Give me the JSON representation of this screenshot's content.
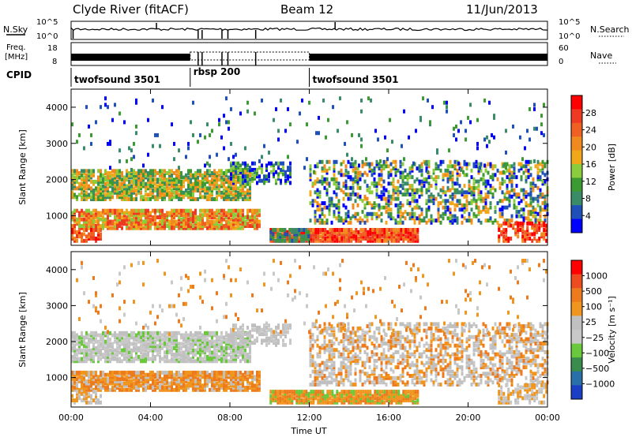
{
  "header": {
    "title": "Clyde River (fitACF)",
    "beam": "Beam 12",
    "date": "11/Jun/2013"
  },
  "top_strip": {
    "nsky_label": "N.Sky",
    "nsky_ticks": [
      "10^5",
      "10^0"
    ],
    "nsearch_label": "N.Search",
    "nsearch_ticks": [
      "10^5",
      "10^0"
    ],
    "freq_label_1": "Freq.",
    "freq_label_2": "[MHz]",
    "freq_ticks": [
      "18",
      "8"
    ],
    "nave_label": "Nave",
    "nave_ticks": [
      "60",
      "0"
    ],
    "cpid_label": "CPID",
    "cpid_segments": [
      {
        "label": "twofsound 3501",
        "start_hour": 0,
        "end_hour": 6
      },
      {
        "label": "rbsp 200",
        "start_hour": 6,
        "end_hour": 12
      },
      {
        "label": "twofsound 3501",
        "start_hour": 12,
        "end_hour": 24
      }
    ]
  },
  "chart_data": [
    {
      "type": "heatmap",
      "name": "power",
      "ylabel": "Slant Range [km]",
      "xlabel": "",
      "ylim": [
        180,
        4500
      ],
      "xlim_hours": [
        0,
        24
      ],
      "yticks": [
        "1000",
        "2000",
        "3000",
        "4000"
      ],
      "colorbar": {
        "label": "Power [dB]",
        "ticks": [
          "4",
          "8",
          "12",
          "16",
          "20",
          "24",
          "28"
        ],
        "colors": [
          "#0000ff",
          "#1f4fb8",
          "#3a8c68",
          "#3c9a32",
          "#8bcc3c",
          "#f0a81a",
          "#f08a1e",
          "#f06022",
          "#ee3a22",
          "#ff0000"
        ]
      },
      "bands": [
        {
          "range_km": [
            1500,
            2200
          ],
          "hours": [
            0,
            8.5
          ],
          "level": "mid"
        },
        {
          "range_km": [
            700,
            1100
          ],
          "hours": [
            0,
            9
          ],
          "level": "high"
        },
        {
          "range_km": [
            350,
            600
          ],
          "hours": [
            10,
            17
          ],
          "level": "high"
        },
        {
          "range_km": [
            900,
            2500
          ],
          "hours": [
            12,
            24
          ],
          "level": "mixed"
        }
      ]
    },
    {
      "type": "heatmap",
      "name": "velocity",
      "ylabel": "Slant Range [km]",
      "xlabel": "Time UT",
      "ylim": [
        180,
        4500
      ],
      "xlim_hours": [
        0,
        24
      ],
      "xticks": [
        "00:00",
        "04:00",
        "08:00",
        "12:00",
        "16:00",
        "20:00",
        "00:00"
      ],
      "yticks": [
        "1000",
        "2000",
        "3000",
        "4000"
      ],
      "colorbar": {
        "label": "Velocity [m s⁻¹]",
        "ticks": [
          "1000",
          "500",
          "100",
          "25",
          "−25",
          "−100",
          "−500",
          "−1000"
        ],
        "colors": [
          "#1a3fc4",
          "#2a70a8",
          "#3a8c4c",
          "#6ac83c",
          "#c8c8c8",
          "#c0c0c0",
          "#f0961e",
          "#ee7a1e",
          "#ec4c20",
          "#ff0000"
        ]
      }
    }
  ]
}
